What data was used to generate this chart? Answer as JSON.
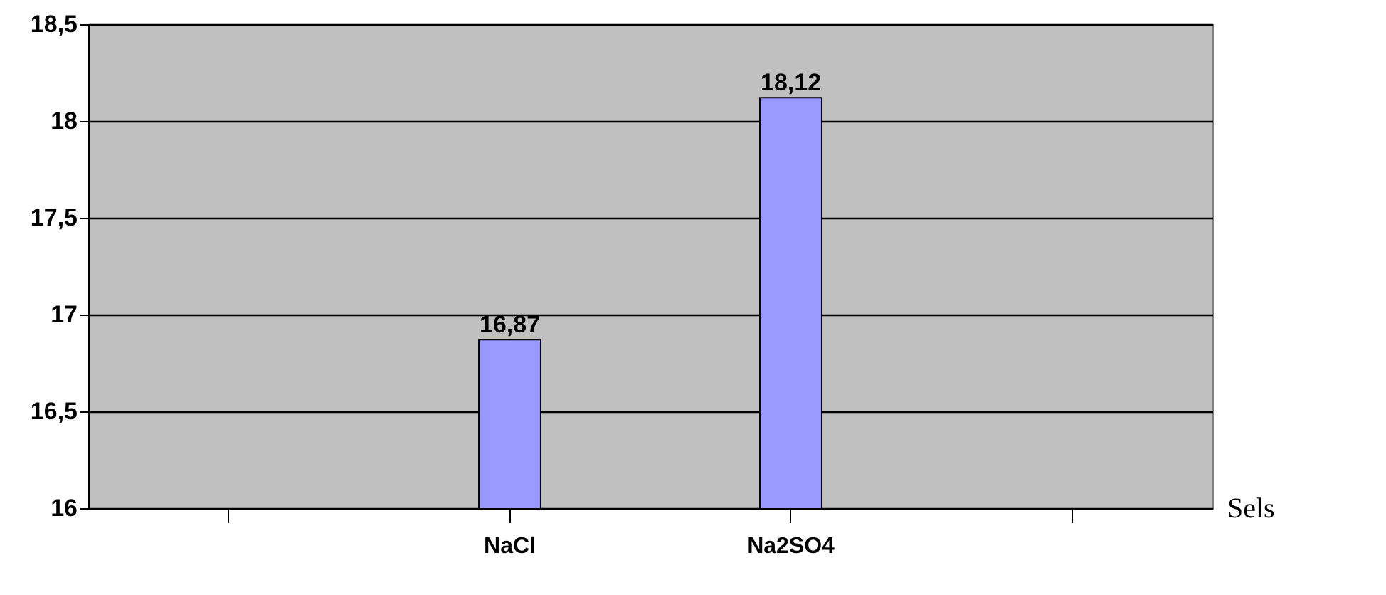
{
  "chart_data": {
    "type": "bar",
    "categories": [
      null,
      "NaCl",
      "Na2SO4",
      null
    ],
    "values": [
      null,
      16.87,
      18.12,
      null
    ],
    "value_labels": [
      null,
      "16,87",
      "18,12",
      null
    ],
    "color": "#9999ff",
    "xlabel": "Sels",
    "ylim": [
      16,
      18.5
    ],
    "yticks": [
      16,
      {
        "value": 16.5,
        "label": "16,5"
      },
      17,
      {
        "value": 17.5,
        "label": "17,5"
      },
      18,
      {
        "value": 18.5,
        "label": "18,5"
      }
    ],
    "grid": "y"
  }
}
